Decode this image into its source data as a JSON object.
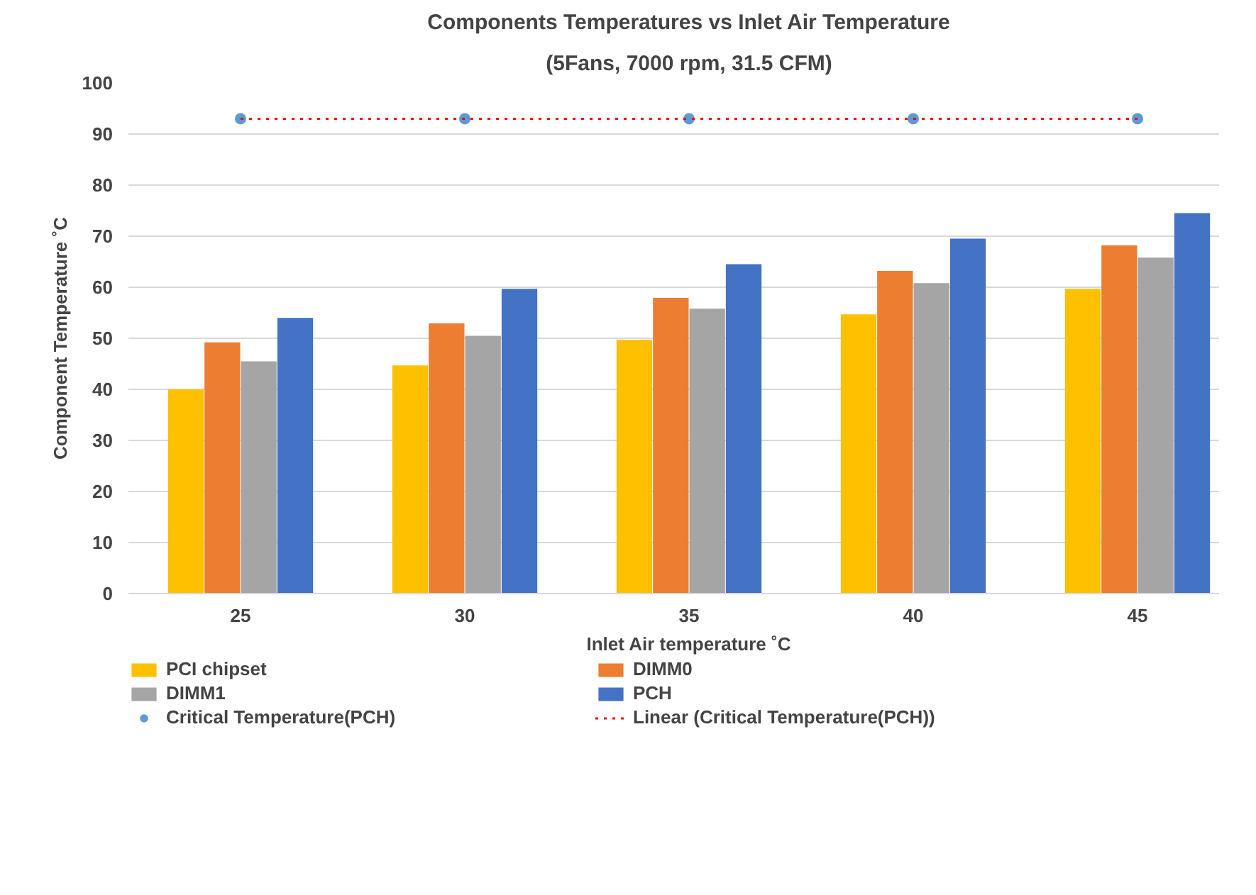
{
  "chart_data": {
    "type": "bar",
    "title": "Components Temperatures vs Inlet Air Temperature",
    "subtitle": "(5Fans, 7000 rpm, 31.5 CFM)",
    "xlabel": "Inlet Air temperature ˚C",
    "ylabel": "Component Temperature ˚C",
    "categories": [
      "25",
      "30",
      "35",
      "40",
      "45"
    ],
    "series": [
      {
        "name": "PCI chipset",
        "color": "#ffc000",
        "values": [
          40,
          44.7,
          49.7,
          54.7,
          59.7
        ]
      },
      {
        "name": "DIMM0",
        "color": "#ed7d31",
        "values": [
          49.2,
          52.9,
          57.9,
          63.2,
          68.2
        ]
      },
      {
        "name": "DIMM1",
        "color": "#a5a5a5",
        "values": [
          45.5,
          50.5,
          55.8,
          60.8,
          65.8
        ]
      },
      {
        "name": "PCH",
        "color": "#4472c4",
        "values": [
          54,
          59.7,
          64.5,
          69.5,
          74.5
        ]
      },
      {
        "name": "Critical Temperature(PCH)",
        "type": "scatter",
        "marker": "circle",
        "color": "#5b9bd5",
        "x": [
          "25",
          "30",
          "35",
          "40",
          "45"
        ],
        "values": [
          93,
          93,
          93,
          93,
          93
        ]
      },
      {
        "name": "Linear (Critical Temperature(PCH))",
        "type": "line",
        "line_style": "dotted",
        "color": "#ff0000",
        "x": [
          "25",
          "30",
          "35",
          "40",
          "45"
        ],
        "values": [
          93,
          93,
          93,
          93,
          93
        ]
      }
    ],
    "ylim": [
      0,
      100
    ],
    "yticks": [
      0,
      10,
      20,
      30,
      40,
      50,
      60,
      70,
      80,
      90,
      100
    ],
    "grid": "y",
    "legend": "bottom"
  }
}
